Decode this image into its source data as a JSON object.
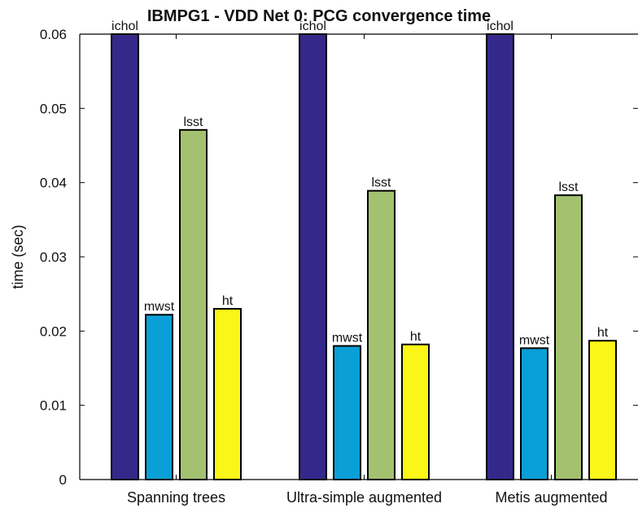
{
  "chart_data": {
    "type": "bar",
    "title": "IBMPG1 - VDD Net 0: PCG convergence time",
    "xlabel": "",
    "ylabel": "time (sec)",
    "categories": [
      "Spanning trees",
      "Ultra-simple augmented",
      "Metis augmented"
    ],
    "series": [
      {
        "name": "ichol",
        "values": [
          0.06,
          0.06,
          0.06
        ],
        "color": "#34288a"
      },
      {
        "name": "mwst",
        "values": [
          0.0222,
          0.018,
          0.0177
        ],
        "color": "#0a9fd6"
      },
      {
        "name": "lsst",
        "values": [
          0.0471,
          0.0389,
          0.0383
        ],
        "color": "#a4c170"
      },
      {
        "name": "ht",
        "values": [
          0.023,
          0.0182,
          0.0187
        ],
        "color": "#faf617"
      }
    ],
    "ylim": [
      0,
      0.06
    ],
    "yticks": [
      "0",
      "0.01",
      "0.02",
      "0.03",
      "0.04",
      "0.05",
      "0.06"
    ],
    "grid": false,
    "legend": "none"
  }
}
